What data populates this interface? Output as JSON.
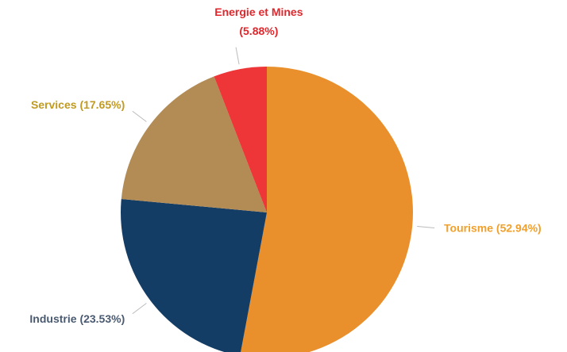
{
  "chart_data": {
    "type": "pie",
    "categories": [
      "Tourisme",
      "Industrie",
      "Services",
      "Energie et Mines"
    ],
    "values": [
      52.94,
      23.53,
      17.65,
      5.88
    ],
    "value_labels": [
      "(52.94%)",
      "(23.53%)",
      "(17.65%)",
      "(5.88%)"
    ],
    "colors": [
      "#e98f2b",
      "#143d66",
      "#b38b55",
      "#ee3537"
    ],
    "label_colors": [
      "#f0a02c",
      "#4a5a70",
      "#c09a22",
      "#e3262b"
    ]
  }
}
